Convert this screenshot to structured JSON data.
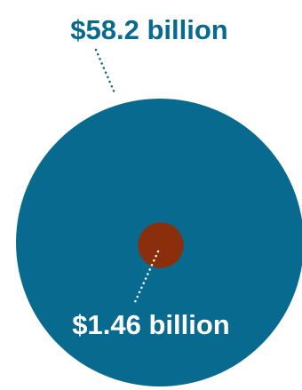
{
  "chart_data": {
    "type": "area",
    "series": [
      {
        "value_billions": 58.2,
        "label": "$58.2 billion",
        "color": "#086a8f"
      },
      {
        "value_billions": 1.46,
        "label": "$1.46 billion",
        "color": "#8b2e0b"
      }
    ],
    "connector_color": "#086a8f",
    "inner_label_color": "#ffffff"
  }
}
